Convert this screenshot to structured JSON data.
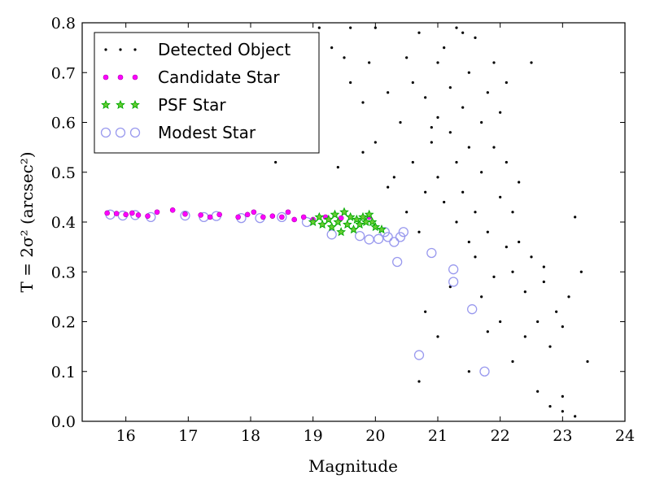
{
  "chart_data": {
    "type": "scatter",
    "title": "",
    "xlabel": "Magnitude",
    "ylabel": "T = 2σ² (arcsec²)",
    "xlim": [
      15.3,
      24.0
    ],
    "ylim": [
      0.0,
      0.8
    ],
    "x_ticks": [
      16,
      17,
      18,
      19,
      20,
      21,
      22,
      23,
      24
    ],
    "y_ticks": [
      0.0,
      0.1,
      0.2,
      0.3,
      0.4,
      0.5,
      0.6,
      0.7,
      0.8
    ],
    "y_tick_labels": [
      "0.0",
      "0.1",
      "0.2",
      "0.3",
      "0.4",
      "0.5",
      "0.6",
      "0.7",
      "0.8"
    ],
    "grid": false,
    "legend_position": "top-left",
    "series": [
      {
        "name": "Detected Object",
        "marker": "dot",
        "color": "#000000",
        "points": [
          [
            18.4,
            0.52
          ],
          [
            18.9,
            0.62
          ],
          [
            19.1,
            0.79
          ],
          [
            19.3,
            0.75
          ],
          [
            19.5,
            0.73
          ],
          [
            19.6,
            0.79
          ],
          [
            19.6,
            0.68
          ],
          [
            19.8,
            0.64
          ],
          [
            19.4,
            0.51
          ],
          [
            19.8,
            0.54
          ],
          [
            19.9,
            0.72
          ],
          [
            20.0,
            0.79
          ],
          [
            20.0,
            0.56
          ],
          [
            20.2,
            0.66
          ],
          [
            20.3,
            0.49
          ],
          [
            20.4,
            0.6
          ],
          [
            20.5,
            0.73
          ],
          [
            20.6,
            0.68
          ],
          [
            20.6,
            0.52
          ],
          [
            20.7,
            0.78
          ],
          [
            20.8,
            0.65
          ],
          [
            20.8,
            0.46
          ],
          [
            20.9,
            0.56
          ],
          [
            21.0,
            0.72
          ],
          [
            21.0,
            0.61
          ],
          [
            21.0,
            0.49
          ],
          [
            21.1,
            0.44
          ],
          [
            21.1,
            0.75
          ],
          [
            21.2,
            0.67
          ],
          [
            21.2,
            0.58
          ],
          [
            21.3,
            0.52
          ],
          [
            21.3,
            0.79
          ],
          [
            21.4,
            0.63
          ],
          [
            21.4,
            0.46
          ],
          [
            21.5,
            0.7
          ],
          [
            21.5,
            0.55
          ],
          [
            21.6,
            0.42
          ],
          [
            21.6,
            0.77
          ],
          [
            21.7,
            0.6
          ],
          [
            21.7,
            0.5
          ],
          [
            21.8,
            0.66
          ],
          [
            21.8,
            0.38
          ],
          [
            21.9,
            0.55
          ],
          [
            21.9,
            0.72
          ],
          [
            22.0,
            0.45
          ],
          [
            22.0,
            0.62
          ],
          [
            22.1,
            0.35
          ],
          [
            22.1,
            0.52
          ],
          [
            22.2,
            0.42
          ],
          [
            22.2,
            0.3
          ],
          [
            22.3,
            0.48
          ],
          [
            22.4,
            0.26
          ],
          [
            22.5,
            0.72
          ],
          [
            22.5,
            0.33
          ],
          [
            22.6,
            0.2
          ],
          [
            22.7,
            0.28
          ],
          [
            22.8,
            0.15
          ],
          [
            22.9,
            0.22
          ],
          [
            23.0,
            0.05
          ],
          [
            23.1,
            0.25
          ],
          [
            23.2,
            0.41
          ],
          [
            23.3,
            0.3
          ],
          [
            23.4,
            0.12
          ],
          [
            21.2,
            0.27
          ],
          [
            21.5,
            0.36
          ],
          [
            21.7,
            0.25
          ],
          [
            22.0,
            0.2
          ],
          [
            22.2,
            0.12
          ],
          [
            22.4,
            0.17
          ],
          [
            22.6,
            0.06
          ],
          [
            22.8,
            0.03
          ],
          [
            23.0,
            0.02
          ],
          [
            23.2,
            0.01
          ],
          [
            20.7,
            0.08
          ],
          [
            21.0,
            0.17
          ],
          [
            20.8,
            0.22
          ],
          [
            21.5,
            0.1
          ],
          [
            21.8,
            0.18
          ],
          [
            20.5,
            0.42
          ],
          [
            20.7,
            0.38
          ],
          [
            21.3,
            0.4
          ],
          [
            21.6,
            0.33
          ],
          [
            21.9,
            0.29
          ],
          [
            22.3,
            0.36
          ],
          [
            22.7,
            0.31
          ],
          [
            23.0,
            0.19
          ],
          [
            22.1,
            0.68
          ],
          [
            21.4,
            0.78
          ],
          [
            20.2,
            0.47
          ],
          [
            20.9,
            0.59
          ]
        ]
      },
      {
        "name": "Candidate Star",
        "marker": "circle",
        "color": "#ff00ff",
        "points": [
          [
            15.7,
            0.418
          ],
          [
            15.85,
            0.417
          ],
          [
            16.0,
            0.415
          ],
          [
            16.1,
            0.418
          ],
          [
            16.2,
            0.414
          ],
          [
            16.35,
            0.412
          ],
          [
            16.5,
            0.42
          ],
          [
            16.75,
            0.424
          ],
          [
            16.95,
            0.416
          ],
          [
            17.2,
            0.414
          ],
          [
            17.35,
            0.41
          ],
          [
            17.5,
            0.415
          ],
          [
            17.8,
            0.41
          ],
          [
            17.95,
            0.415
          ],
          [
            18.05,
            0.42
          ],
          [
            18.2,
            0.41
          ],
          [
            18.35,
            0.412
          ],
          [
            18.5,
            0.41
          ],
          [
            18.6,
            0.42
          ],
          [
            18.7,
            0.405
          ],
          [
            18.85,
            0.41
          ],
          [
            19.0,
            0.405
          ],
          [
            19.2,
            0.41
          ],
          [
            19.45,
            0.408
          ],
          [
            19.9,
            0.41
          ]
        ]
      },
      {
        "name": "PSF Star",
        "marker": "star",
        "color": "#00aa00",
        "points": [
          [
            19.0,
            0.4
          ],
          [
            19.1,
            0.41
          ],
          [
            19.15,
            0.395
          ],
          [
            19.25,
            0.405
          ],
          [
            19.3,
            0.39
          ],
          [
            19.35,
            0.415
          ],
          [
            19.4,
            0.4
          ],
          [
            19.45,
            0.38
          ],
          [
            19.5,
            0.42
          ],
          [
            19.55,
            0.395
          ],
          [
            19.6,
            0.41
          ],
          [
            19.65,
            0.385
          ],
          [
            19.7,
            0.405
          ],
          [
            19.75,
            0.395
          ],
          [
            19.8,
            0.41
          ],
          [
            19.85,
            0.4
          ],
          [
            19.9,
            0.415
          ],
          [
            19.95,
            0.4
          ],
          [
            20.0,
            0.39
          ],
          [
            20.1,
            0.385
          ]
        ]
      },
      {
        "name": "Modest Star",
        "marker": "open-circle",
        "color": "#9999ee",
        "points": [
          [
            15.75,
            0.415
          ],
          [
            15.95,
            0.413
          ],
          [
            16.15,
            0.414
          ],
          [
            16.4,
            0.41
          ],
          [
            16.95,
            0.413
          ],
          [
            17.25,
            0.41
          ],
          [
            17.45,
            0.412
          ],
          [
            17.85,
            0.408
          ],
          [
            18.15,
            0.408
          ],
          [
            18.5,
            0.41
          ],
          [
            18.9,
            0.4
          ],
          [
            19.3,
            0.375
          ],
          [
            19.75,
            0.372
          ],
          [
            19.9,
            0.365
          ],
          [
            20.05,
            0.366
          ],
          [
            20.2,
            0.37
          ],
          [
            20.3,
            0.36
          ],
          [
            20.4,
            0.37
          ],
          [
            20.35,
            0.32
          ],
          [
            20.9,
            0.338
          ],
          [
            21.25,
            0.305
          ],
          [
            21.25,
            0.28
          ],
          [
            21.55,
            0.225
          ],
          [
            21.75,
            0.1
          ],
          [
            20.7,
            0.133
          ],
          [
            20.15,
            0.38
          ],
          [
            20.45,
            0.38
          ]
        ]
      }
    ]
  }
}
